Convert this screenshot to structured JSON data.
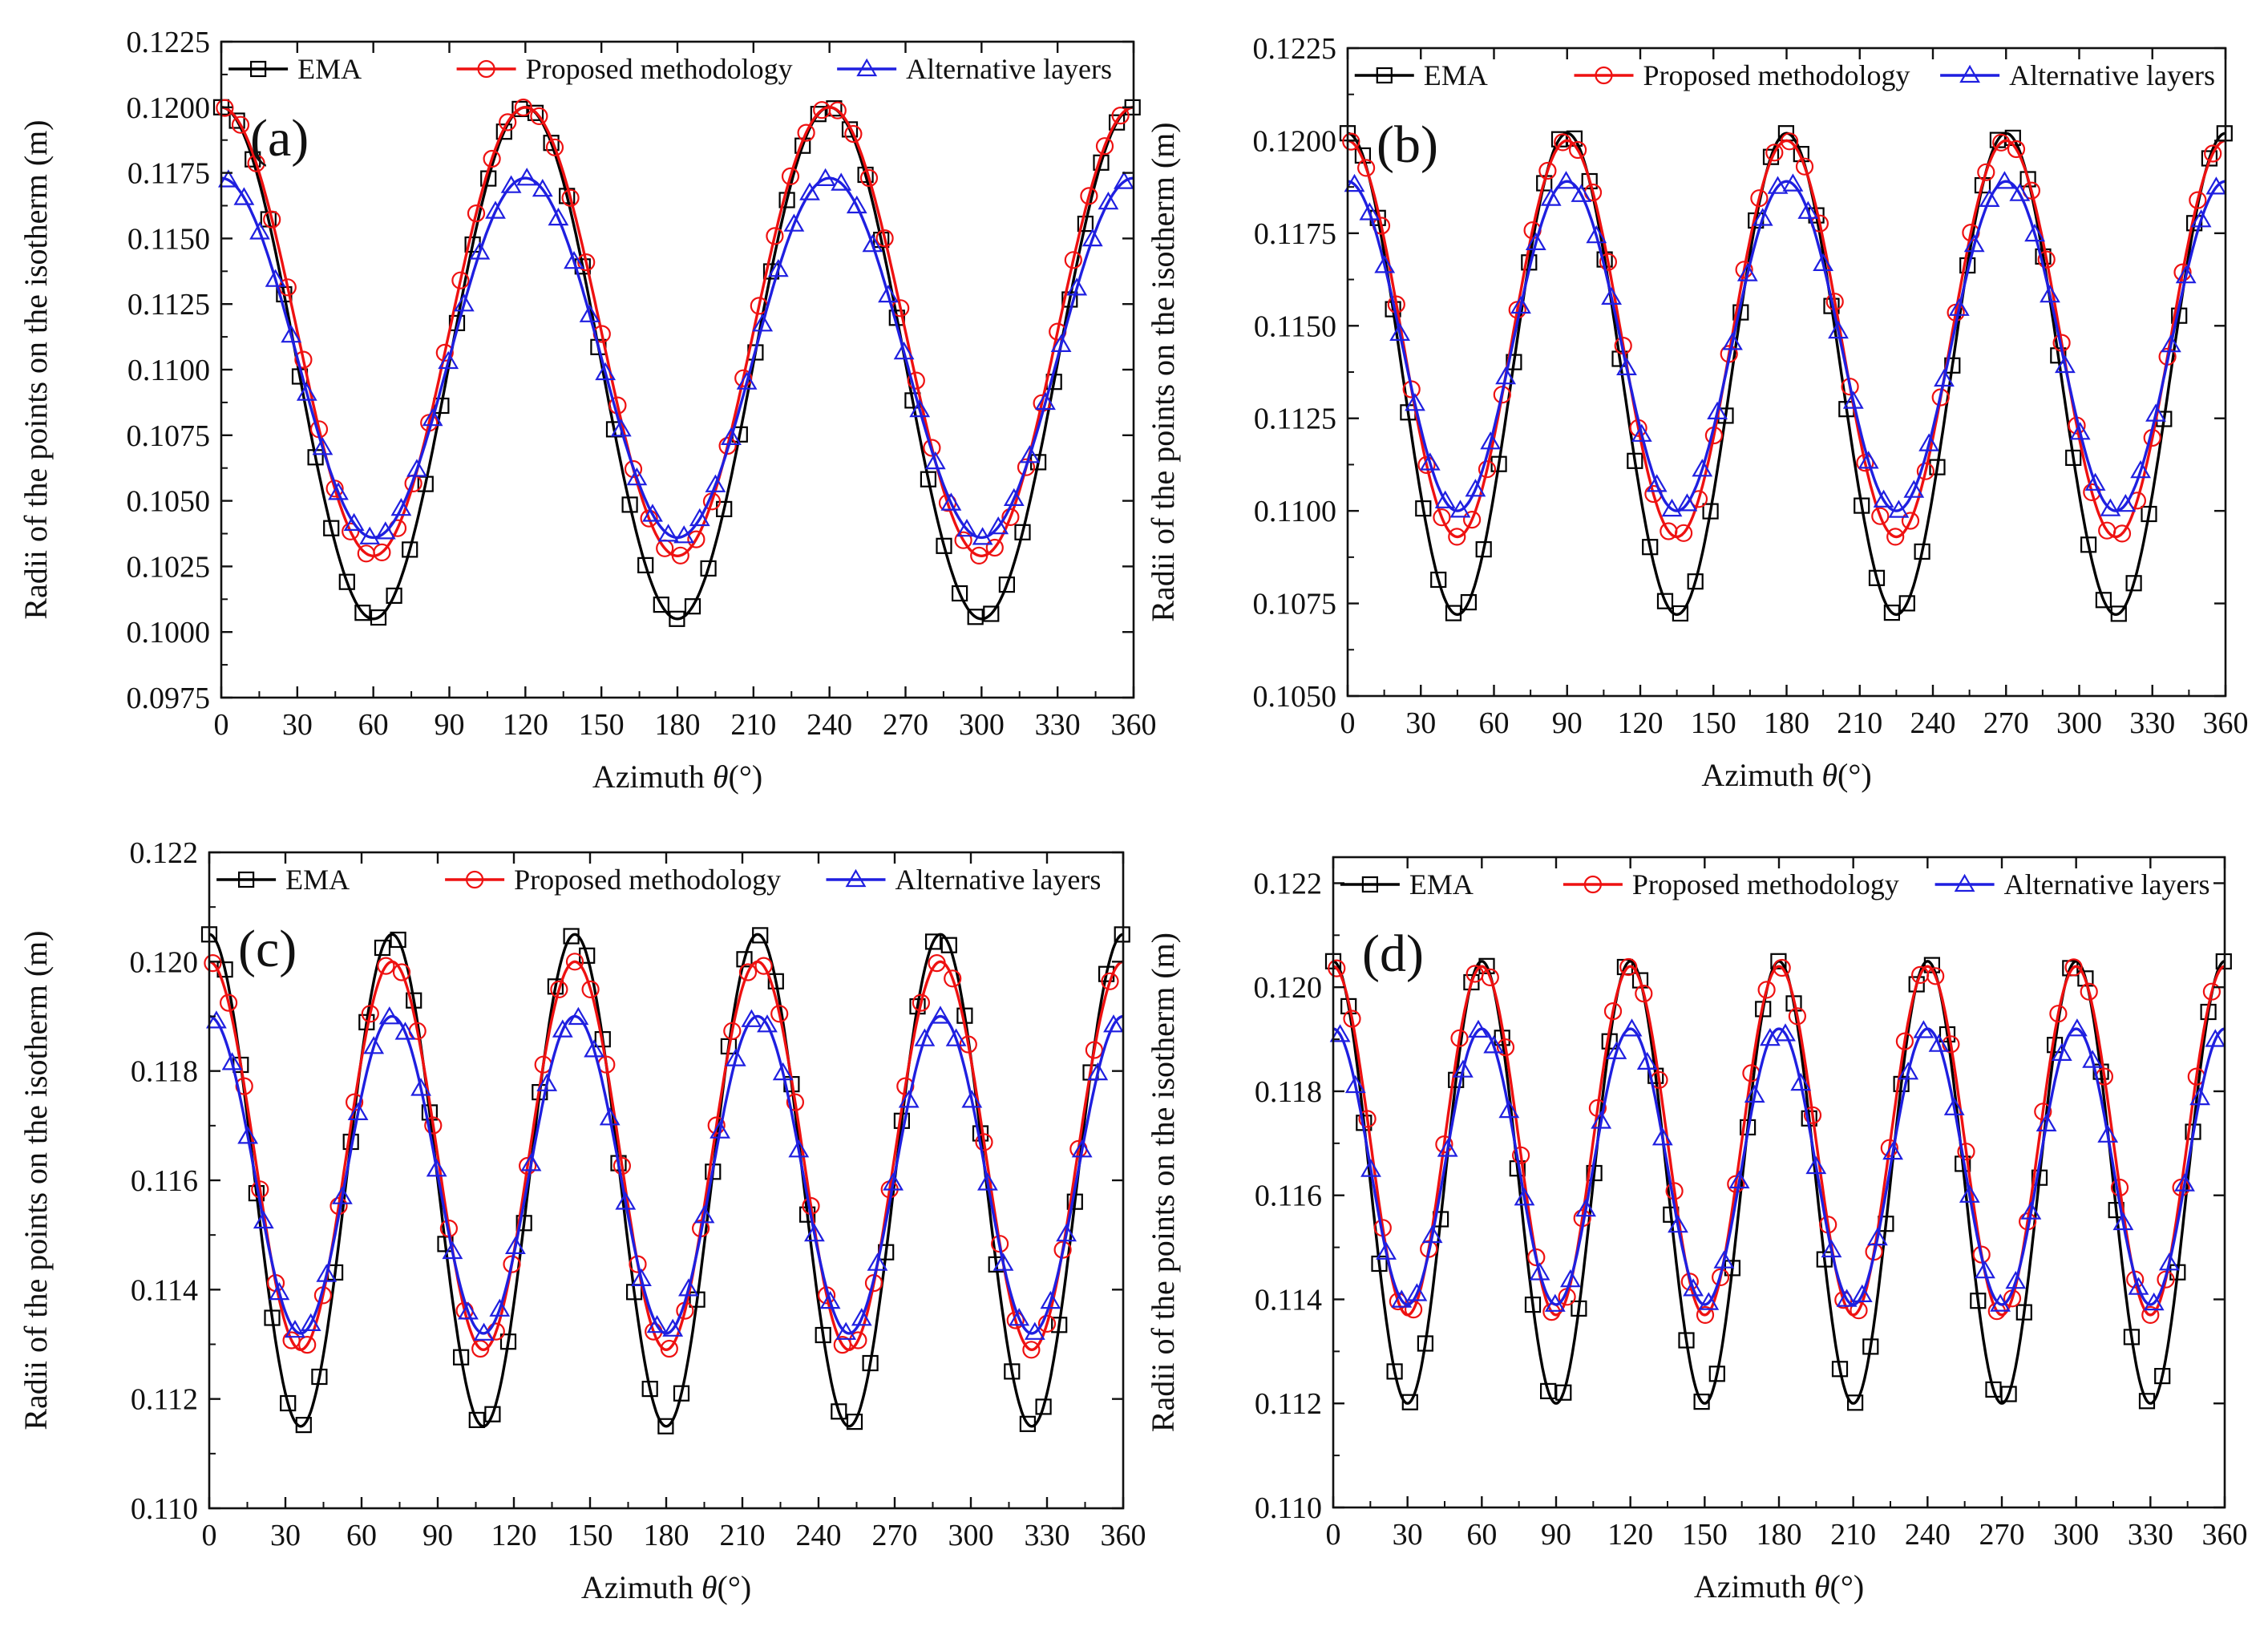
{
  "figure": {
    "x_unit_suffix": "(°)",
    "legend": [
      "EMA",
      "Proposed methodology",
      "Alternative layers"
    ],
    "colors": {
      "EMA": "#000000",
      "Proposed methodology": "#ee1111",
      "Alternative layers": "#1f1fe0"
    },
    "markers": {
      "EMA": "square-icon",
      "Proposed methodology": "circle-icon",
      "Alternative layers": "triangle-icon"
    }
  },
  "chart_data": [
    {
      "type": "line",
      "panel_label": "(a)",
      "xlabel": "Azimuth",
      "xlabel_symbol": "θ",
      "ylabel": "Radii of the points on the isotherm (m)",
      "xlim": [
        0,
        360
      ],
      "ylim": [
        0.0975,
        0.1225
      ],
      "xticks": [
        "0",
        "30",
        "60",
        "90",
        "120",
        "150",
        "180",
        "210",
        "240",
        "270",
        "300",
        "330",
        "360"
      ],
      "yticks": [
        "0.0975",
        "0.1000",
        "0.1025",
        "0.1050",
        "0.1075",
        "0.1100",
        "0.1125",
        "0.1150",
        "0.1175",
        "0.1200",
        "0.1225"
      ],
      "period_deg": 120,
      "series": [
        {
          "name": "EMA",
          "max": 0.12,
          "min": 0.1005
        },
        {
          "name": "Proposed methodology",
          "max": 0.12,
          "min": 0.1029
        },
        {
          "name": "Alternative layers",
          "max": 0.1173,
          "min": 0.1036
        }
      ],
      "legend_position": "top"
    },
    {
      "type": "line",
      "panel_label": "(b)",
      "xlabel": "Azimuth",
      "xlabel_symbol": "θ",
      "ylabel": "Radii of the points on the isotherm (m)",
      "xlim": [
        0,
        360
      ],
      "ylim": [
        0.105,
        0.1225
      ],
      "xticks": [
        "0",
        "30",
        "60",
        "90",
        "120",
        "150",
        "180",
        "210",
        "240",
        "270",
        "300",
        "330",
        "360"
      ],
      "yticks": [
        "0.1050",
        "0.1075",
        "0.1100",
        "0.1125",
        "0.1150",
        "0.1175",
        "0.1200",
        "0.1225"
      ],
      "period_deg": 90,
      "series": [
        {
          "name": "EMA",
          "max": 0.1202,
          "min": 0.1072
        },
        {
          "name": "Proposed methodology",
          "max": 0.12,
          "min": 0.1093
        },
        {
          "name": "Alternative layers",
          "max": 0.1189,
          "min": 0.11
        }
      ],
      "legend_position": "top"
    },
    {
      "type": "line",
      "panel_label": "(c)",
      "xlabel": "Azimuth",
      "xlabel_symbol": "θ",
      "ylabel": "Radii of the points on the isotherm (m)",
      "xlim": [
        0,
        360
      ],
      "ylim": [
        0.11,
        0.122
      ],
      "xticks": [
        "0",
        "30",
        "60",
        "90",
        "120",
        "150",
        "180",
        "210",
        "240",
        "270",
        "300",
        "330",
        "360"
      ],
      "yticks": [
        "0.110",
        "0.112",
        "0.114",
        "0.116",
        "0.118",
        "0.120",
        "0.122"
      ],
      "period_deg": 72,
      "series": [
        {
          "name": "EMA",
          "max": 0.1205,
          "min": 0.1115
        },
        {
          "name": "Proposed methodology",
          "max": 0.12,
          "min": 0.1129
        },
        {
          "name": "Alternative layers",
          "max": 0.119,
          "min": 0.1132
        }
      ],
      "legend_position": "top"
    },
    {
      "type": "line",
      "panel_label": "(d)",
      "xlabel": "Azimuth",
      "xlabel_symbol": "θ",
      "ylabel": "Radii of the points on the isotherm (m)",
      "xlim": [
        0,
        360
      ],
      "ylim": [
        0.11,
        0.1225
      ],
      "xticks": [
        "0",
        "30",
        "60",
        "90",
        "120",
        "150",
        "180",
        "210",
        "240",
        "270",
        "300",
        "330",
        "360"
      ],
      "yticks": [
        "0.110",
        "0.112",
        "0.114",
        "0.116",
        "0.118",
        "0.120",
        "0.122"
      ],
      "period_deg": 60,
      "series": [
        {
          "name": "EMA",
          "max": 0.1205,
          "min": 0.112
        },
        {
          "name": "Proposed methodology",
          "max": 0.1204,
          "min": 0.1137
        },
        {
          "name": "Alternative layers",
          "max": 0.1192,
          "min": 0.1139
        }
      ],
      "legend_position": "top"
    }
  ]
}
